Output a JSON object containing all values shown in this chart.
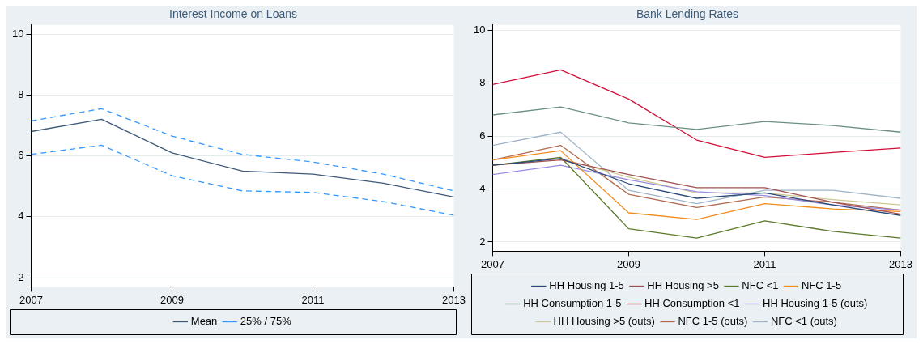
{
  "chart_data": [
    {
      "type": "line",
      "title": "Interest Income on Loans",
      "x": [
        2007,
        2008,
        2009,
        2010,
        2011,
        2012,
        2013
      ],
      "xlim": [
        2007,
        2013
      ],
      "xticks": [
        2007,
        2009,
        2011,
        2013
      ],
      "ylim": [
        1.7,
        10.3
      ],
      "yticks": [
        2,
        4,
        6,
        8,
        10
      ],
      "grid": "y",
      "legend": "bottom",
      "marker": "none",
      "series": [
        {
          "name": "Mean",
          "color": "#3d5a78",
          "line_style": "solid",
          "values": [
            6.8,
            7.2,
            6.1,
            5.5,
            5.4,
            5.1,
            4.65
          ]
        },
        {
          "name": "25% / 75%",
          "color": "#3399ff",
          "line_style": "dashed",
          "values": [
            7.15,
            7.55,
            6.65,
            6.05,
            5.8,
            5.4,
            4.85
          ]
        },
        {
          "color": "#3399ff",
          "line_style": "dashed",
          "values": [
            6.05,
            6.35,
            5.35,
            4.85,
            4.8,
            4.5,
            4.05
          ]
        }
      ]
    },
    {
      "type": "line",
      "title": "Bank Lending Rates",
      "x": [
        2007,
        2008,
        2009,
        2010,
        2011,
        2012,
        2013
      ],
      "xlim": [
        2007,
        2013
      ],
      "xticks": [
        2007,
        2009,
        2011,
        2013
      ],
      "ylim": [
        1.65,
        10.2
      ],
      "yticks": [
        2,
        4,
        6,
        8,
        10
      ],
      "grid": "y",
      "legend": "bottom",
      "marker": "none",
      "series": [
        {
          "name": "HH Housing 1-5",
          "color": "#2a4a7a",
          "line_style": "solid",
          "values": [
            4.9,
            5.15,
            4.2,
            3.65,
            3.85,
            3.4,
            3.0
          ]
        },
        {
          "name": "HH Housing >5",
          "color": "#a05050",
          "line_style": "solid",
          "values": [
            4.9,
            5.1,
            4.55,
            4.05,
            4.05,
            3.5,
            3.05
          ]
        },
        {
          "name": "NFC <1",
          "color": "#5a7a2a",
          "line_style": "solid",
          "values": [
            4.9,
            5.2,
            2.5,
            2.15,
            2.8,
            2.4,
            2.15
          ]
        },
        {
          "name": "NFC 1-5",
          "color": "#f08c1e",
          "line_style": "solid",
          "values": [
            5.1,
            5.45,
            3.1,
            2.85,
            3.45,
            3.25,
            3.15
          ]
        },
        {
          "name": "HH Consumption 1-5",
          "color": "#6b9080",
          "line_style": "solid",
          "values": [
            6.8,
            7.1,
            6.5,
            6.25,
            6.55,
            6.4,
            6.15
          ]
        },
        {
          "name": "HH Consumption <1",
          "color": "#d0103a",
          "line_style": "solid",
          "values": [
            7.95,
            8.5,
            7.4,
            5.85,
            5.2,
            5.38,
            5.55
          ]
        },
        {
          "name": "HH Housing 1-5 (outs)",
          "color": "#9c8ce0",
          "line_style": "solid",
          "values": [
            4.55,
            4.9,
            4.35,
            3.9,
            3.75,
            3.4,
            3.2
          ]
        },
        {
          "name": "HH Housing >5 (outs)",
          "color": "#d0c890",
          "line_style": "solid",
          "values": [
            null,
            5.15,
            4.45,
            3.85,
            3.85,
            3.6,
            3.4
          ]
        },
        {
          "name": "NFC 1-5 (outs)",
          "color": "#b06b50",
          "line_style": "solid",
          "values": [
            5.1,
            5.65,
            3.8,
            3.3,
            3.7,
            3.5,
            3.2
          ]
        },
        {
          "name": "NFC <1 (outs)",
          "color": "#a0b4c8",
          "line_style": "solid",
          "values": [
            5.65,
            6.15,
            3.95,
            3.45,
            3.95,
            3.95,
            3.65
          ]
        }
      ]
    }
  ]
}
